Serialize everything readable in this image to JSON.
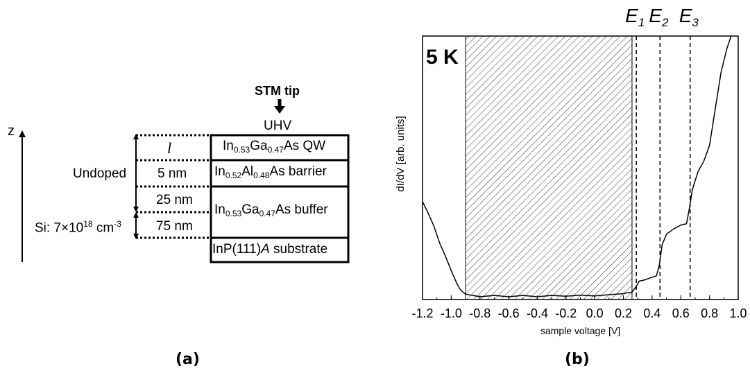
{
  "figure_a": {
    "axis_label": "z",
    "tip_label": "STM tip",
    "ambient_label": "UHV",
    "layers": [
      {
        "name": "layer-qw",
        "thickness": "l",
        "parts": [
          [
            "In",
            "0.53"
          ],
          [
            "Ga",
            "0.47"
          ],
          [
            "As QW",
            ""
          ]
        ]
      },
      {
        "name": "layer-barrier",
        "thickness": "5 nm",
        "parts": [
          [
            "In",
            "0.52"
          ],
          [
            "Al",
            "0.48"
          ],
          [
            "As barrier",
            ""
          ]
        ]
      },
      {
        "name": "layer-buffer",
        "thickness_top": "25 nm",
        "thickness_bottom": "75 nm",
        "parts": [
          [
            "In",
            "0.53"
          ],
          [
            "Ga",
            "0.47"
          ],
          [
            "As buffer",
            ""
          ]
        ]
      },
      {
        "name": "layer-substrate",
        "text_before": "InP(111)",
        "text_italic": "A",
        "text_after": " substrate"
      }
    ],
    "undoped_label": "Undoped",
    "doping": {
      "prefix": "Si: 7×10",
      "exp1": "18",
      "unit": " cm",
      "exp2": "-3"
    },
    "caption": "(a)"
  },
  "figure_b": {
    "caption": "(b)",
    "chart_data": {
      "type": "line",
      "temperature_label": "5 K",
      "xlabel": "sample voltage [V]",
      "ylabel": "dI/dV [arb. units]",
      "xlim": [
        -1.2,
        1.0
      ],
      "ylim": [
        0,
        1
      ],
      "xticks": [
        "-1.2",
        "-1.0",
        "-0.8",
        "-0.6",
        "-0.4",
        "-0.2",
        "0.0",
        "0.2",
        "0.4",
        "0.6",
        "0.8",
        "1.0"
      ],
      "yticks": [],
      "hatched_region": [
        -0.9,
        0.26
      ],
      "dashed_lines": [
        {
          "label": "E",
          "sub": "1",
          "x": 0.29
        },
        {
          "label": "E",
          "sub": "2",
          "x": 0.455
        },
        {
          "label": "E",
          "sub": "3",
          "x": 0.665
        }
      ],
      "series": [
        {
          "x": [
            -1.2,
            -1.16,
            -1.12,
            -1.08,
            -1.04,
            -1.0,
            -0.98,
            -0.96,
            -0.94,
            -0.92,
            -0.9,
            -0.85,
            -0.8,
            -0.7,
            -0.6,
            -0.5,
            -0.4,
            -0.3,
            -0.2,
            -0.1,
            0.0,
            0.1,
            0.2,
            0.26,
            0.29,
            0.31,
            0.35,
            0.4,
            0.43,
            0.45,
            0.47,
            0.5,
            0.55,
            0.6,
            0.64,
            0.66,
            0.68,
            0.72,
            0.76,
            0.8,
            0.84,
            0.88,
            0.92,
            0.95
          ],
          "y": [
            0.365,
            0.32,
            0.27,
            0.205,
            0.155,
            0.1,
            0.075,
            0.05,
            0.03,
            0.018,
            0.01,
            0.005,
            0.0,
            0.005,
            0.0,
            0.005,
            0.0,
            0.005,
            0.002,
            0.006,
            0.003,
            0.008,
            0.012,
            0.018,
            0.04,
            0.06,
            0.065,
            0.075,
            0.08,
            0.12,
            0.2,
            0.24,
            0.26,
            0.275,
            0.28,
            0.34,
            0.41,
            0.48,
            0.52,
            0.58,
            0.72,
            0.86,
            0.95,
            1.0
          ]
        }
      ]
    }
  }
}
